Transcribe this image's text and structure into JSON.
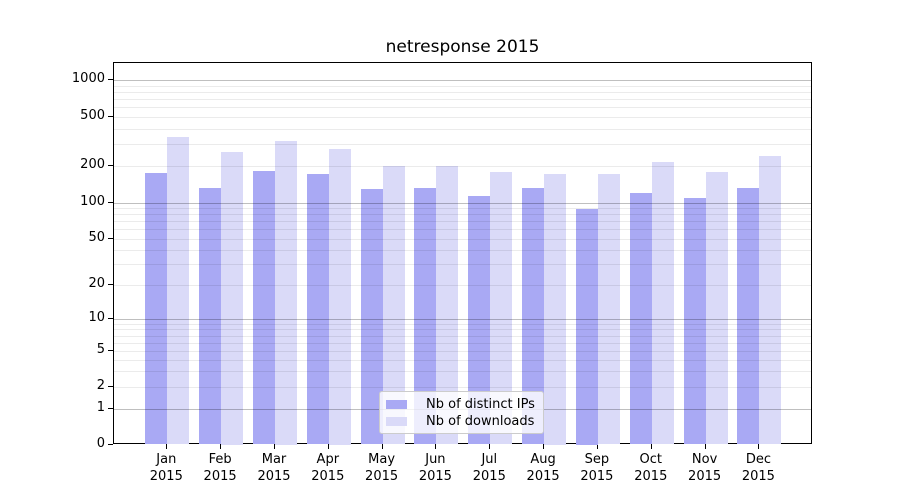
{
  "chart_data": {
    "type": "bar",
    "title": "netresponse 2015",
    "categories": [
      "Jan 2015",
      "Feb 2015",
      "Mar 2015",
      "Apr 2015",
      "May 2015",
      "Jun 2015",
      "Jul 2015",
      "Aug 2015",
      "Sep 2015",
      "Oct 2015",
      "Nov 2015",
      "Dec 2015"
    ],
    "series": [
      {
        "name": "Nb of distinct IPs",
        "color": "#a9a9f4",
        "values": [
          175,
          131,
          181,
          170,
          129,
          133,
          114,
          131,
          89,
          120,
          110,
          131
        ]
      },
      {
        "name": "Nb of downloads",
        "color": "#dadaf8",
        "values": [
          340,
          258,
          318,
          273,
          197,
          199,
          177,
          171,
          170,
          213,
          178,
          239
        ]
      }
    ],
    "xlabel": "",
    "ylabel": "",
    "y_axis": {
      "scale": "symlog",
      "tick_labels": [
        "0",
        "1",
        "2",
        "5",
        "10",
        "20",
        "50",
        "100",
        "200",
        "500",
        "1000"
      ],
      "ylim": [
        0,
        1400
      ]
    },
    "grid": "on",
    "legend": {
      "position": "inside-bottom-center",
      "entries": [
        "Nb of distinct IPs",
        "Nb of downloads"
      ]
    }
  }
}
